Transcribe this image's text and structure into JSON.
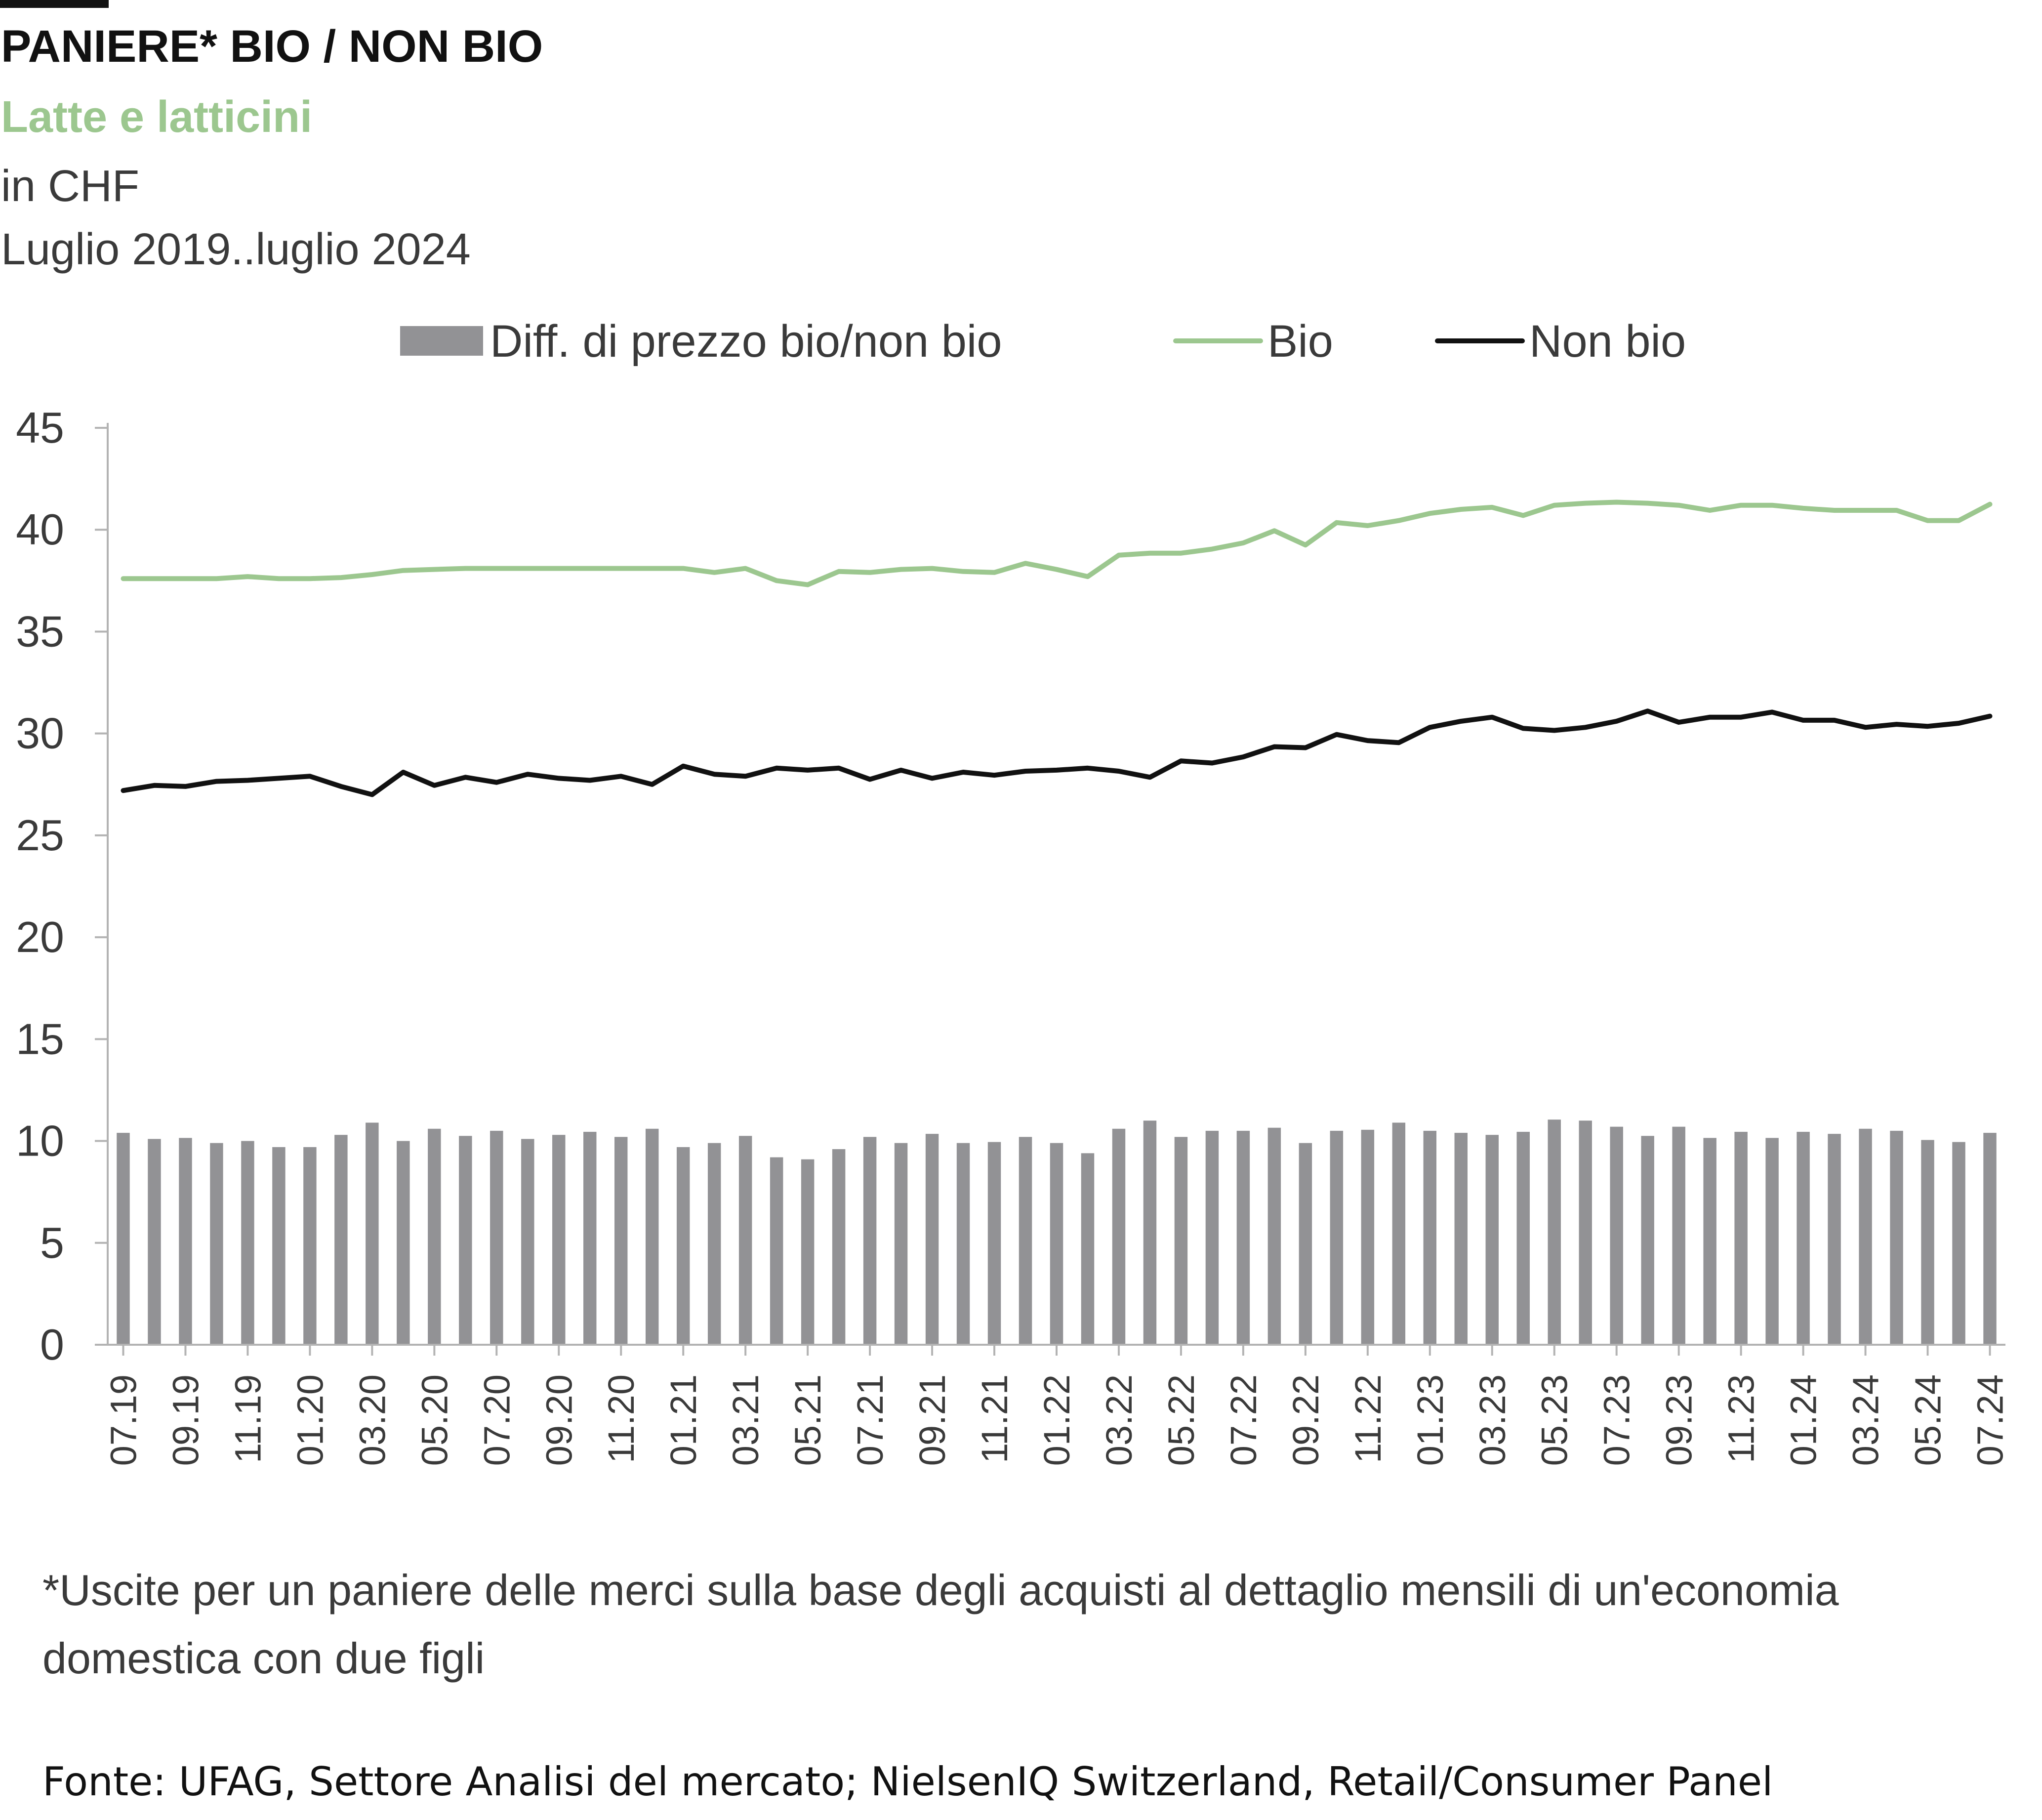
{
  "header": {
    "title": "PANIERE* BIO / NON BIO",
    "subtitle": "Latte e latticini",
    "unit": "in CHF",
    "period": "Luglio 2019..luglio 2024"
  },
  "footnote": "*Uscite per un paniere delle merci sulla base degli acquisti al dettaglio mensili di un'economia domestica con due figli",
  "source": "Fonte: UFAG, Settore Analisi del mercato; NielsenIQ Switzerland, Retail/Consumer Panel",
  "colors": {
    "bio": "#9cc78f",
    "non_bio": "#111111",
    "diff": "#929295",
    "axis": "#b3b3b3"
  },
  "chart_data": {
    "type": "bar",
    "legend_position": "top",
    "ylim": [
      0,
      45
    ],
    "yticks": [
      0,
      5,
      10,
      15,
      20,
      25,
      30,
      35,
      40,
      45
    ],
    "grid": false,
    "xlabel": "",
    "ylabel": "",
    "categories": [
      "07.19",
      "08.19",
      "09.19",
      "10.19",
      "11.19",
      "12.19",
      "01.20",
      "02.20",
      "03.20",
      "04.20",
      "05.20",
      "06.20",
      "07.20",
      "08.20",
      "09.20",
      "10.20",
      "11.20",
      "12.20",
      "01.21",
      "02.21",
      "03.21",
      "04.21",
      "05.21",
      "06.21",
      "07.21",
      "08.21",
      "09.21",
      "10.21",
      "11.21",
      "12.21",
      "01.22",
      "02.22",
      "03.22",
      "04.22",
      "05.22",
      "06.22",
      "07.22",
      "08.22",
      "09.22",
      "10.22",
      "11.22",
      "12.22",
      "01.23",
      "02.23",
      "03.23",
      "04.23",
      "05.23",
      "06.23",
      "07.23",
      "08.23",
      "09.23",
      "10.23",
      "11.23",
      "12.23",
      "01.24",
      "02.24",
      "03.24",
      "04.24",
      "05.24",
      "06.24",
      "07.24"
    ],
    "tick_labels": [
      "07.19",
      "09.19",
      "11.19",
      "01.20",
      "03.20",
      "05.20",
      "07.20",
      "09.20",
      "11.20",
      "01.21",
      "03.21",
      "05.21",
      "07.21",
      "09.21",
      "11.21",
      "01.22",
      "03.22",
      "05.22",
      "07.22",
      "09.22",
      "11.22",
      "01.23",
      "03.23",
      "05.23",
      "07.23",
      "09.23",
      "11.23",
      "01.24",
      "03.24",
      "05.24",
      "07.24"
    ],
    "series": [
      {
        "name": "Diff. di prezzo bio/non bio",
        "type": "bar",
        "values": [
          10.4,
          10.1,
          10.15,
          9.9,
          10.0,
          9.7,
          9.7,
          10.3,
          10.9,
          10.0,
          10.6,
          10.25,
          10.5,
          10.1,
          10.3,
          10.45,
          10.2,
          10.6,
          9.7,
          9.9,
          10.25,
          9.2,
          9.1,
          9.6,
          10.2,
          9.9,
          10.35,
          9.9,
          9.95,
          10.2,
          9.9,
          9.4,
          10.6,
          11.0,
          10.2,
          10.5,
          10.5,
          10.65,
          9.9,
          10.5,
          10.55,
          10.9,
          10.5,
          10.4,
          10.3,
          10.45,
          11.05,
          11.0,
          10.7,
          10.25,
          10.7,
          10.15,
          10.45,
          10.15,
          10.45,
          10.35,
          10.6,
          10.5,
          10.05,
          9.95,
          10.4
        ]
      },
      {
        "name": "Bio",
        "type": "line",
        "values": [
          37.6,
          37.6,
          37.6,
          37.6,
          37.7,
          37.6,
          37.6,
          37.65,
          37.8,
          38.0,
          38.05,
          38.1,
          38.1,
          38.1,
          38.1,
          38.1,
          38.1,
          38.1,
          38.1,
          37.9,
          38.1,
          37.5,
          37.3,
          37.95,
          37.9,
          38.05,
          38.1,
          37.95,
          37.9,
          38.35,
          38.05,
          37.7,
          38.75,
          38.85,
          38.85,
          39.05,
          39.35,
          39.95,
          39.25,
          40.35,
          40.2,
          40.45,
          40.8,
          41.0,
          41.1,
          40.7,
          41.2,
          41.3,
          41.35,
          41.3,
          41.2,
          40.95,
          41.2,
          41.2,
          41.05,
          40.95,
          40.95,
          40.95,
          40.45,
          40.45,
          41.25
        ]
      },
      {
        "name": "Non bio",
        "type": "line",
        "values": [
          27.2,
          27.45,
          27.4,
          27.65,
          27.7,
          27.8,
          27.9,
          27.4,
          27.0,
          28.1,
          27.45,
          27.85,
          27.6,
          28.0,
          27.8,
          27.7,
          27.9,
          27.5,
          28.4,
          28.0,
          27.9,
          28.3,
          28.2,
          28.3,
          27.75,
          28.2,
          27.8,
          28.1,
          27.95,
          28.15,
          28.2,
          28.3,
          28.15,
          27.85,
          28.65,
          28.55,
          28.85,
          29.35,
          29.3,
          29.95,
          29.65,
          29.55,
          30.3,
          30.6,
          30.8,
          30.25,
          30.15,
          30.3,
          30.6,
          31.1,
          30.55,
          30.8,
          30.8,
          31.05,
          30.65,
          30.65,
          30.3,
          30.45,
          30.35,
          30.5,
          30.85
        ]
      }
    ]
  }
}
